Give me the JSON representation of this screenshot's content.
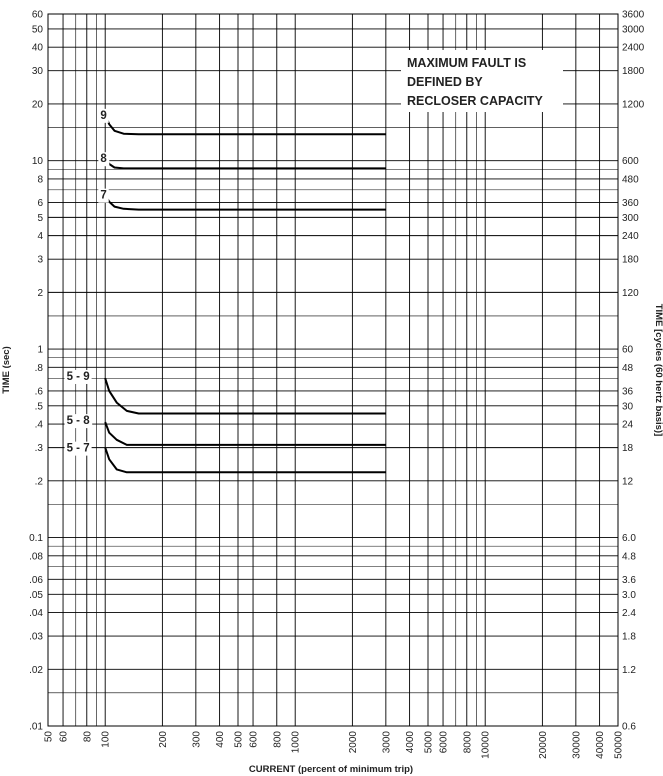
{
  "chart_data": {
    "type": "line",
    "x_scale": "log",
    "y_scale": "log",
    "xlim": [
      50,
      50000
    ],
    "ylim": [
      0.01,
      60
    ],
    "grid": true,
    "xlabel": "CURRENT (percent of minimum trip)",
    "ylabel": "TIME (sec)",
    "ylabel_right": "TIME [cycles (60 hertz basis)]",
    "x_ticks": [
      {
        "v": 50,
        "t": "50"
      },
      {
        "v": 60,
        "t": "60"
      },
      {
        "v": 80,
        "t": "80"
      },
      {
        "v": 100,
        "t": "100"
      },
      {
        "v": 200,
        "t": "200"
      },
      {
        "v": 300,
        "t": "300"
      },
      {
        "v": 400,
        "t": "400"
      },
      {
        "v": 500,
        "t": "500"
      },
      {
        "v": 600,
        "t": "600"
      },
      {
        "v": 800,
        "t": "800"
      },
      {
        "v": 1000,
        "t": "1000"
      },
      {
        "v": 2000,
        "t": "2000"
      },
      {
        "v": 3000,
        "t": "3000"
      },
      {
        "v": 4000,
        "t": "4000"
      },
      {
        "v": 5000,
        "t": "5000"
      },
      {
        "v": 6000,
        "t": "6000"
      },
      {
        "v": 8000,
        "t": "8000"
      },
      {
        "v": 10000,
        "t": "10000"
      },
      {
        "v": 20000,
        "t": "20000"
      },
      {
        "v": 30000,
        "t": "30000"
      },
      {
        "v": 40000,
        "t": "40000"
      },
      {
        "v": 50000,
        "t": "50000"
      }
    ],
    "y_ticks_left": [
      {
        "v": 60,
        "t": "60"
      },
      {
        "v": 50,
        "t": "50"
      },
      {
        "v": 40,
        "t": "40"
      },
      {
        "v": 30,
        "t": "30"
      },
      {
        "v": 20,
        "t": "20"
      },
      {
        "v": 10,
        "t": "10"
      },
      {
        "v": 8,
        "t": "8"
      },
      {
        "v": 6,
        "t": "6"
      },
      {
        "v": 5,
        "t": "5"
      },
      {
        "v": 4,
        "t": "4"
      },
      {
        "v": 3,
        "t": "3"
      },
      {
        "v": 2,
        "t": "2"
      },
      {
        "v": 1,
        "t": "1"
      },
      {
        "v": 0.8,
        "t": ".8"
      },
      {
        "v": 0.6,
        "t": ".6"
      },
      {
        "v": 0.5,
        "t": ".5"
      },
      {
        "v": 0.4,
        "t": ".4"
      },
      {
        "v": 0.3,
        "t": ".3"
      },
      {
        "v": 0.2,
        "t": ".2"
      },
      {
        "v": 0.1,
        "t": "0.1"
      },
      {
        "v": 0.08,
        "t": ".08"
      },
      {
        "v": 0.06,
        "t": ".06"
      },
      {
        "v": 0.05,
        "t": ".05"
      },
      {
        "v": 0.04,
        "t": ".04"
      },
      {
        "v": 0.03,
        "t": ".03"
      },
      {
        "v": 0.02,
        "t": ".02"
      },
      {
        "v": 0.01,
        "t": ".01"
      }
    ],
    "y_ticks_right": [
      {
        "v": 60,
        "t": "3600"
      },
      {
        "v": 50,
        "t": "3000"
      },
      {
        "v": 40,
        "t": "2400"
      },
      {
        "v": 30,
        "t": "1800"
      },
      {
        "v": 20,
        "t": "1200"
      },
      {
        "v": 10,
        "t": "600"
      },
      {
        "v": 8,
        "t": "480"
      },
      {
        "v": 6,
        "t": "360"
      },
      {
        "v": 5,
        "t": "300"
      },
      {
        "v": 4,
        "t": "240"
      },
      {
        "v": 3,
        "t": "180"
      },
      {
        "v": 2,
        "t": "120"
      },
      {
        "v": 1,
        "t": "60"
      },
      {
        "v": 0.8,
        "t": "48"
      },
      {
        "v": 0.6,
        "t": "36"
      },
      {
        "v": 0.5,
        "t": "30"
      },
      {
        "v": 0.4,
        "t": "24"
      },
      {
        "v": 0.3,
        "t": "18"
      },
      {
        "v": 0.2,
        "t": "12"
      },
      {
        "v": 0.1,
        "t": "6.0"
      },
      {
        "v": 0.08,
        "t": "4.8"
      },
      {
        "v": 0.06,
        "t": "3.6"
      },
      {
        "v": 0.05,
        "t": "3.0"
      },
      {
        "v": 0.04,
        "t": "2.4"
      },
      {
        "v": 0.03,
        "t": "1.8"
      },
      {
        "v": 0.02,
        "t": "1.2"
      },
      {
        "v": 0.01,
        "t": "0.6"
      }
    ],
    "series": [
      {
        "label": "9",
        "points": [
          [
            100,
            17.5
          ],
          [
            105,
            15.6
          ],
          [
            112,
            14.4
          ],
          [
            125,
            13.9
          ],
          [
            150,
            13.8
          ],
          [
            3000,
            13.8
          ]
        ]
      },
      {
        "label": "8",
        "points": [
          [
            100,
            10.3
          ],
          [
            105,
            9.6
          ],
          [
            112,
            9.2
          ],
          [
            125,
            9.1
          ],
          [
            3000,
            9.1
          ]
        ]
      },
      {
        "label": "7",
        "points": [
          [
            100,
            6.6
          ],
          [
            105,
            6.05
          ],
          [
            112,
            5.7
          ],
          [
            125,
            5.55
          ],
          [
            150,
            5.5
          ],
          [
            3000,
            5.5
          ]
        ]
      },
      {
        "label": "5 - 9",
        "points": [
          [
            100,
            0.7
          ],
          [
            105,
            0.6
          ],
          [
            115,
            0.52
          ],
          [
            130,
            0.47
          ],
          [
            150,
            0.455
          ],
          [
            3000,
            0.455
          ]
        ]
      },
      {
        "label": "5 - 8",
        "points": [
          [
            100,
            0.41
          ],
          [
            105,
            0.36
          ],
          [
            115,
            0.33
          ],
          [
            130,
            0.31
          ],
          [
            3000,
            0.31
          ]
        ]
      },
      {
        "label": "5 - 7",
        "points": [
          [
            100,
            0.3
          ],
          [
            105,
            0.26
          ],
          [
            115,
            0.23
          ],
          [
            130,
            0.222
          ],
          [
            3000,
            0.222
          ]
        ]
      }
    ],
    "annotation": [
      "MAXIMUM FAULT IS",
      "DEFINED BY",
      "RECLOSER CAPACITY"
    ]
  }
}
